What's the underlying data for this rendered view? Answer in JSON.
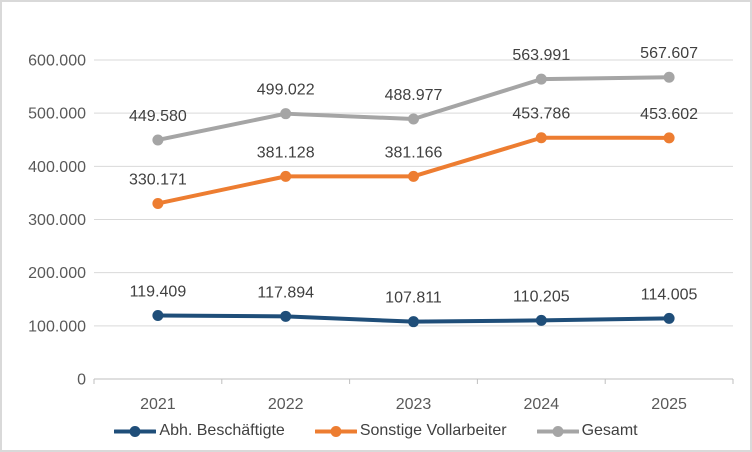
{
  "chart_data": {
    "type": "line",
    "title": "",
    "xlabel": "",
    "ylabel": "",
    "categories": [
      "2021",
      "2022",
      "2023",
      "2024",
      "2025"
    ],
    "series": [
      {
        "name": "Abh. Beschäftigte",
        "color": "#1f4e79",
        "values": [
          119409,
          117894,
          107811,
          110205,
          114005
        ],
        "labels": [
          "119.409",
          "117.894",
          "107.811",
          "110.205",
          "114.005"
        ]
      },
      {
        "name": "Sonstige Vollarbeiter",
        "color": "#ed7d31",
        "values": [
          330171,
          381128,
          381166,
          453786,
          453602
        ],
        "labels": [
          "330.171",
          "381.128",
          "381.166",
          "453.786",
          "453.602"
        ]
      },
      {
        "name": "Gesamt",
        "color": "#a5a5a5",
        "values": [
          449580,
          499022,
          488977,
          563991,
          567607
        ],
        "labels": [
          "449.580",
          "499.022",
          "488.977",
          "563.991",
          "567.607"
        ]
      }
    ],
    "ylim": [
      0,
      600000
    ],
    "y_ticks": [
      {
        "value": 0,
        "label": "0"
      },
      {
        "value": 100000,
        "label": "100.000"
      },
      {
        "value": 200000,
        "label": "200.000"
      },
      {
        "value": 300000,
        "label": "300.000"
      },
      {
        "value": 400000,
        "label": "400.000"
      },
      {
        "value": 500000,
        "label": "500.000"
      },
      {
        "value": 600000,
        "label": "600.000"
      }
    ],
    "grid": true,
    "data_labels": true,
    "legend_position": "bottom"
  },
  "styles": {
    "background": "#ffffff",
    "border_color": "#d9d9d9",
    "grid_color": "#d9d9d9",
    "axis_line_color": "#bfbfbf",
    "tick_label_color": "#595959",
    "data_label_color": "#404040",
    "legend_text_color": "#404040"
  }
}
